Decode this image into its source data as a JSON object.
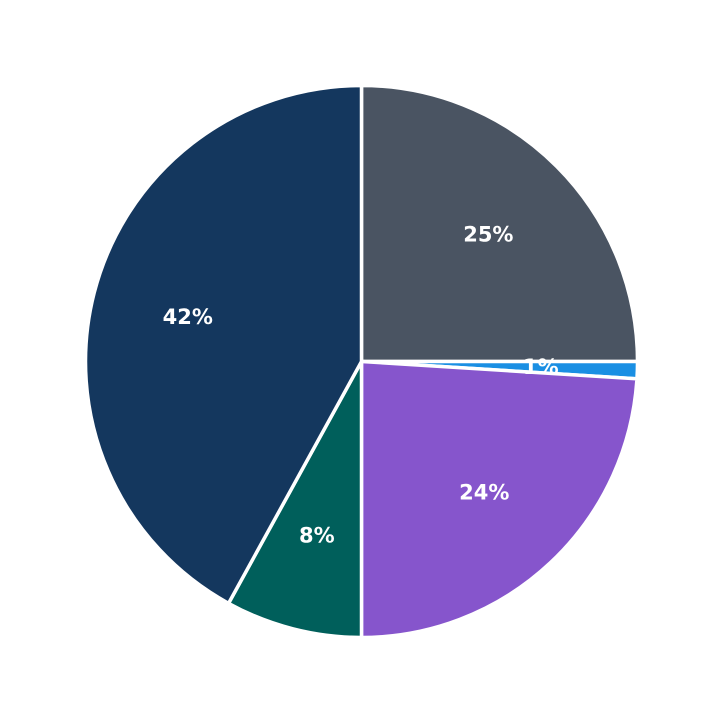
{
  "chart_data": {
    "type": "pie",
    "title": "",
    "start_angle_deg": 90,
    "direction": "clockwise",
    "slices": [
      {
        "value": 25,
        "label": "25%",
        "color": "#4a5462"
      },
      {
        "value": 1,
        "label": "1%",
        "color": "#1a8fe3"
      },
      {
        "value": 24,
        "label": "24%",
        "color": "#8655cc"
      },
      {
        "value": 8,
        "label": "8%",
        "color": "#005f5b"
      },
      {
        "value": 42,
        "label": "42%",
        "color": "#14375e"
      }
    ],
    "legend": "none"
  }
}
